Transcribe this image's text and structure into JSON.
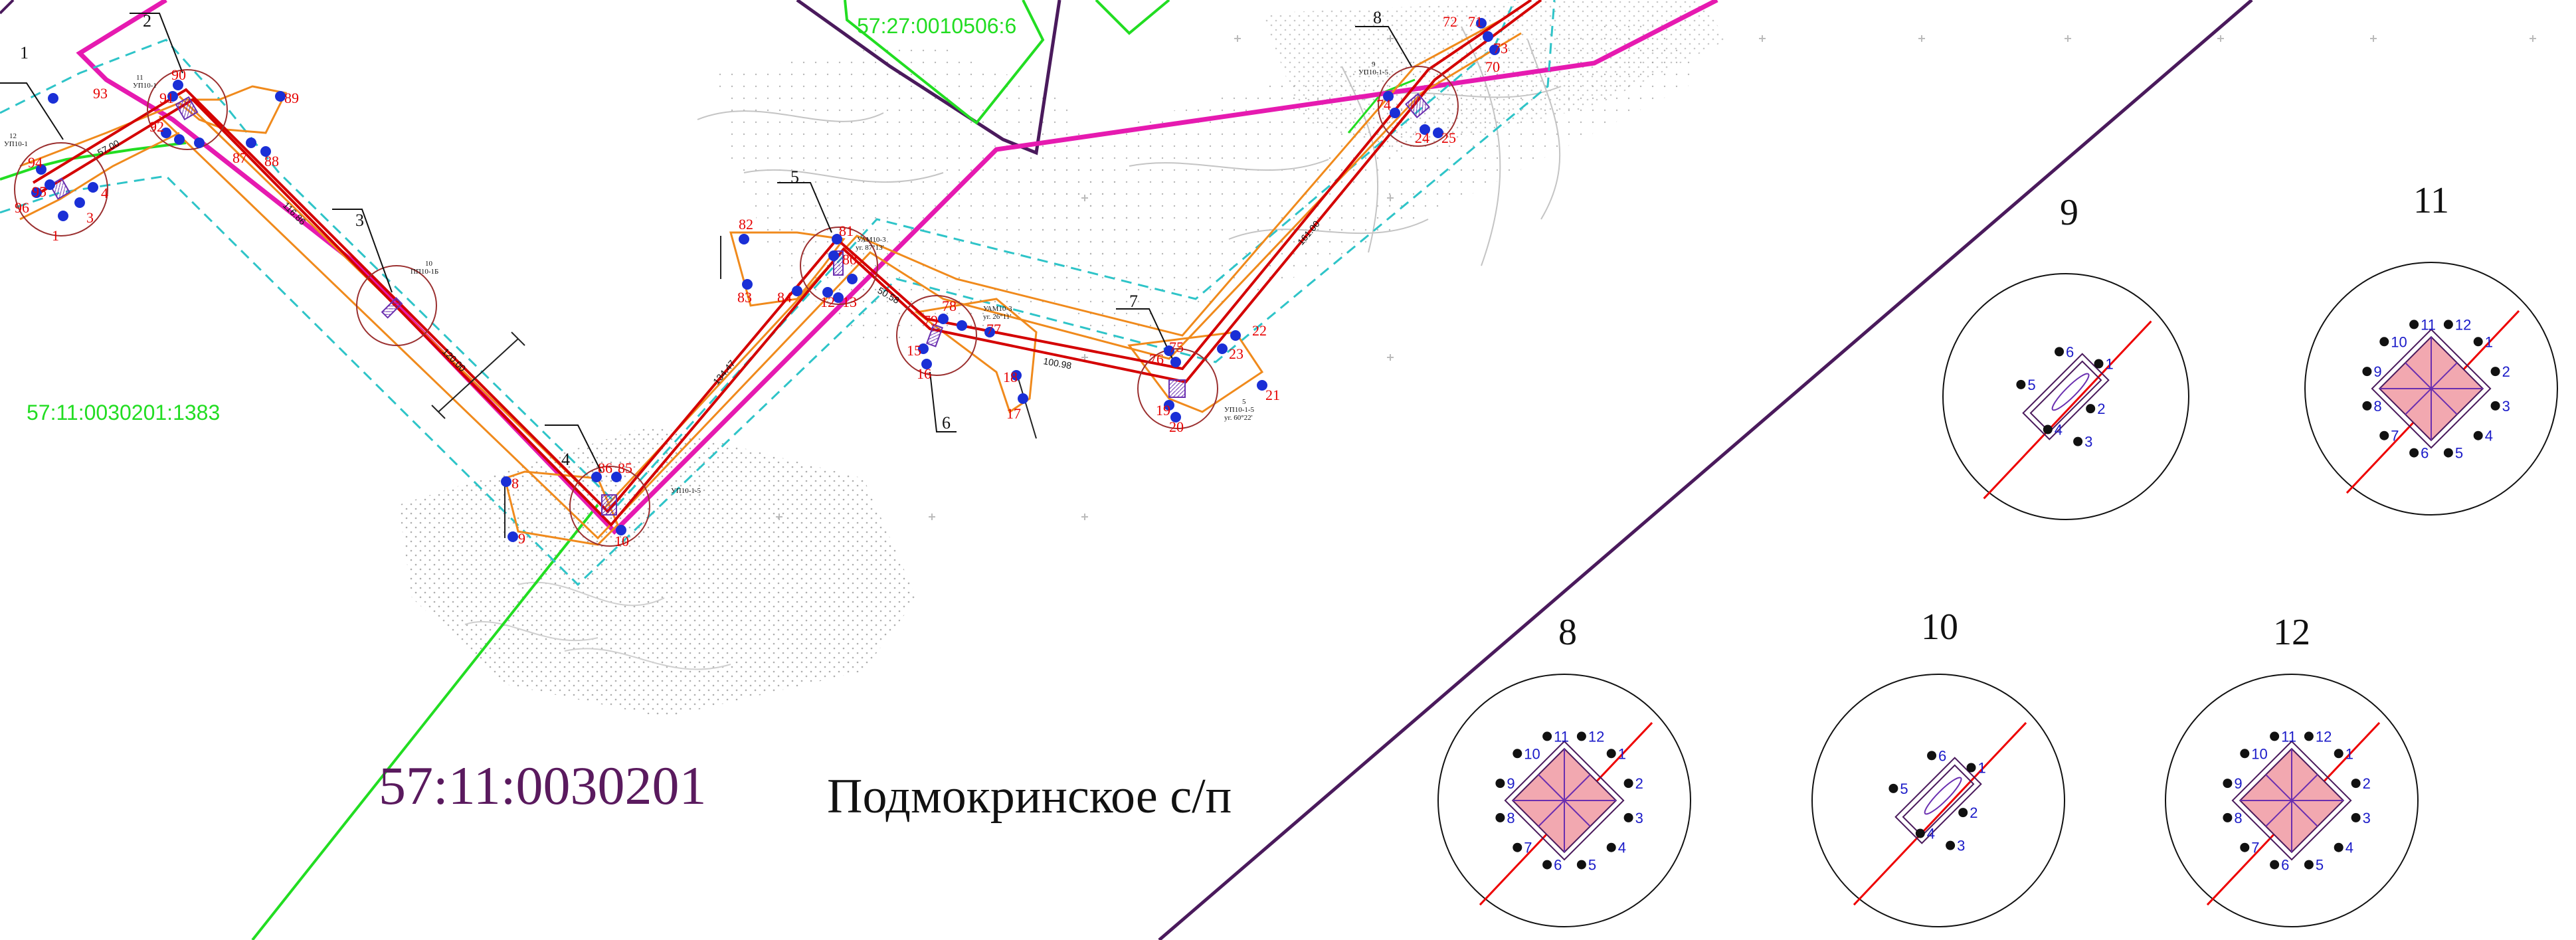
{
  "cadastral": {
    "quarter_top": "57:27:0010506:6",
    "parcel_left": "57:11:0030201:1383",
    "quarter_bottom": "57:11:0030201"
  },
  "settlement": "Подмокринское с/п",
  "colors": {
    "route": "#d40000",
    "zone": "#f08a1c",
    "boundary_magenta": "#e61ab0",
    "boundary_purple": "#4a1a5c",
    "boundary_green": "#22dd22",
    "buffer": "#2ec4c8",
    "points": "#1a2fd6",
    "point_labels": "#e60000",
    "support_fill": "#f2a8b0",
    "detail_numbers": "#1a1ac8",
    "text_dark": "#111111"
  },
  "nodes": [
    "1",
    "2",
    "3",
    "4",
    "5",
    "6",
    "7",
    "8"
  ],
  "segment_labels": [
    "57.00",
    "116.86",
    "120.00",
    "134.47",
    "50.58",
    "100.98",
    "161.00"
  ],
  "point_labels": {
    "group1": [
      "93",
      "94",
      "95",
      "96",
      "1",
      "4",
      "3"
    ],
    "group2": [
      "90",
      "91",
      "92",
      "88",
      "89",
      "87"
    ],
    "group4": [
      "8",
      "9",
      "86",
      "85",
      "10"
    ],
    "group5": [
      "82",
      "83",
      "84",
      "80",
      "81",
      "12",
      "13"
    ],
    "group6": [
      "78",
      "79",
      "77",
      "15",
      "16",
      "17",
      "18"
    ],
    "group7": [
      "76",
      "75",
      "19",
      "20",
      "21",
      "22",
      "23"
    ],
    "group8": [
      "72",
      "71",
      "73",
      "70",
      "74",
      "24",
      "25"
    ]
  },
  "node_annotations": {
    "n1": [
      "12",
      "УП10-1"
    ],
    "n2": [
      "11",
      "УП10-1"
    ],
    "n3": [
      "10",
      "ПП10-1Б"
    ],
    "n4": [
      "УП10-1-5"
    ],
    "n5": [
      "УАМ10-3",
      "уг. 87°13'"
    ],
    "n6": [
      "УАМ10-3",
      "уг. 26°11'"
    ],
    "n7": [
      "5",
      "УП10-1-5",
      "уг. 60°22'"
    ],
    "n8": [
      "9",
      "УП10-1-5"
    ]
  },
  "details": [
    {
      "title": "9",
      "points": [
        "1",
        "2",
        "3",
        "4",
        "5",
        "6"
      ]
    },
    {
      "title": "11",
      "points": [
        "1",
        "2",
        "3",
        "4",
        "5",
        "6",
        "7",
        "8",
        "9",
        "10",
        "11",
        "12"
      ]
    },
    {
      "title": "8",
      "points": [
        "1",
        "2",
        "3",
        "4",
        "5",
        "6",
        "7",
        "8",
        "9",
        "10",
        "11",
        "12"
      ]
    },
    {
      "title": "10",
      "points": [
        "1",
        "2",
        "3",
        "4",
        "5",
        "6"
      ]
    },
    {
      "title": "12",
      "points": [
        "1",
        "2",
        "3",
        "4",
        "5",
        "6",
        "7",
        "8",
        "9",
        "10",
        "11",
        "12"
      ]
    }
  ]
}
